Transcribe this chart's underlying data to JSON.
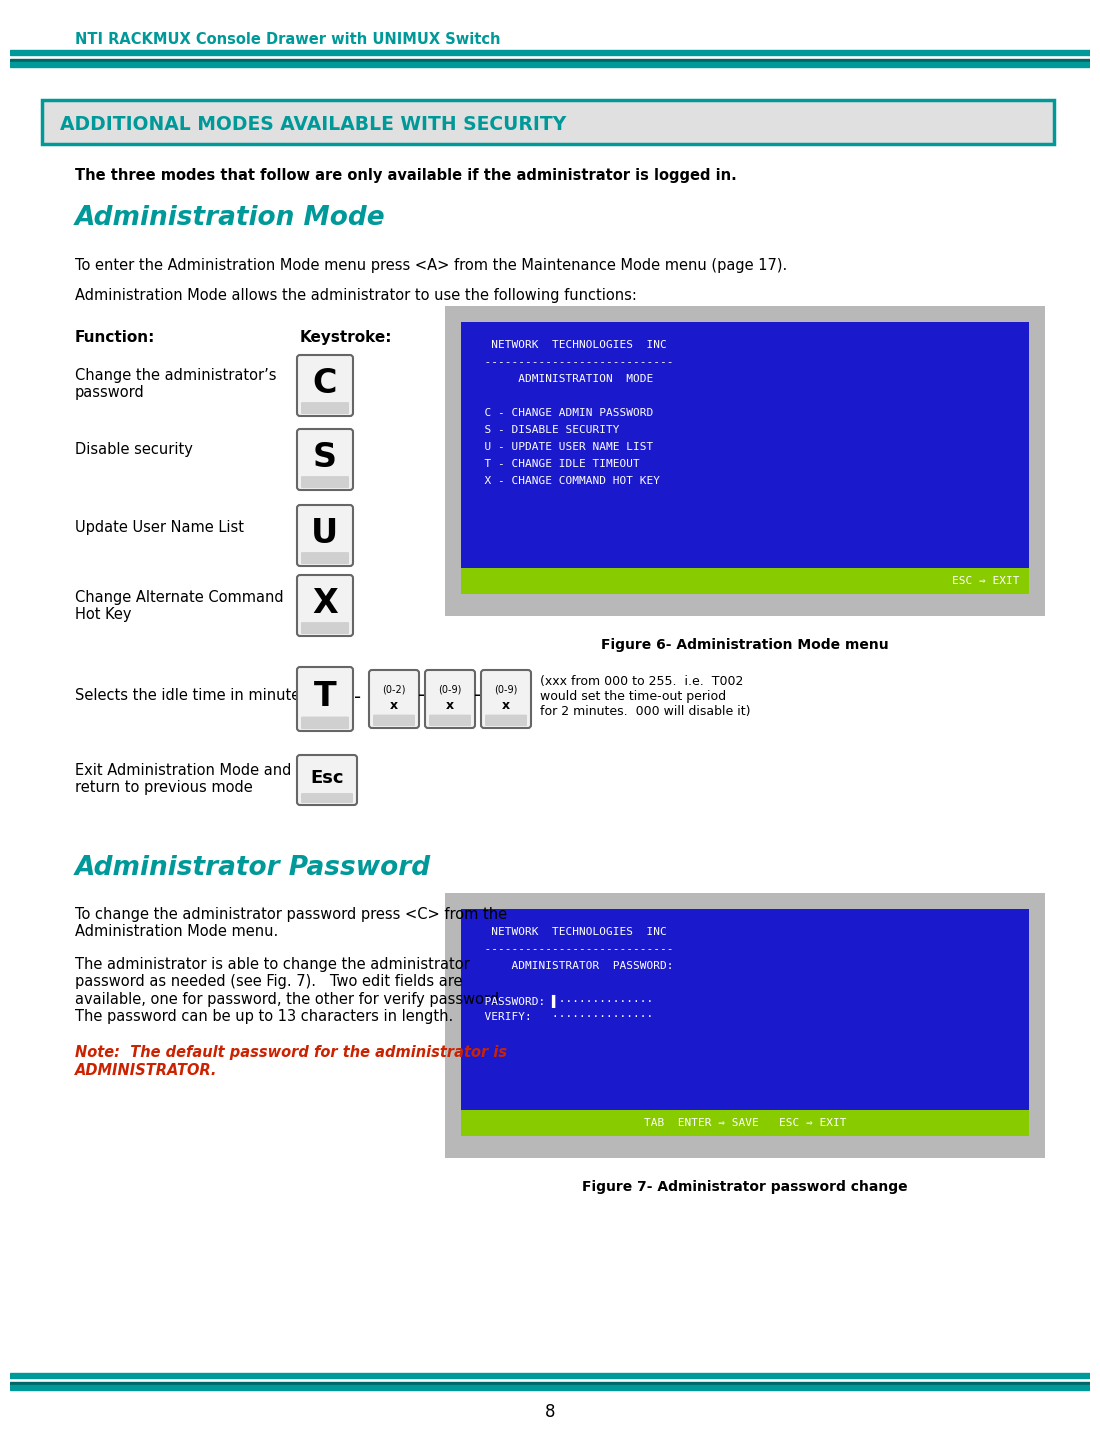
{
  "teal_color": "#009999",
  "header_text": "NTI RACKMUX Console Drawer with UNIMUX Switch",
  "section_title": "ADDITIONAL MODES AVAILABLE WITH SECURITY",
  "bold_intro": "The three modes that follow are only available if the administrator is logged in.",
  "section_heading": "Administration Mode",
  "para1": "To enter the Administration Mode menu press <A> from the Maintenance Mode menu (page 17).",
  "para2": "Administration Mode allows the administrator to use the following functions:",
  "func_header_left": "Function:",
  "func_header_right": "Keystroke:",
  "screen1_lines": [
    "   NETWORK  TECHNOLOGIES  INC",
    "  ----------------------------",
    "       ADMINISTRATION  MODE",
    "",
    "  C - CHANGE ADMIN PASSWORD",
    "  S - DISABLE SECURITY",
    "  U - UPDATE USER NAME LIST",
    "  T - CHANGE IDLE TIMEOUT",
    "  X - CHANGE COMMAND HOT KEY"
  ],
  "screen1_bottom": "ESC ⇒ EXIT",
  "fig6_caption": "Figure 6- Administration Mode menu",
  "idle_text_left": "Selects the idle time in minutes",
  "idle_note": "(xxx from 000 to 255.  i.e.  T002\nwould set the time-out period\nfor 2 minutes.  000 will disable it)",
  "exit_text": "Exit Administration Mode and\nreturn to previous mode",
  "exit_key": "Esc",
  "section_heading2": "Administrator Password",
  "admin_para1": "To change the administrator password press <C> from the\nAdministration Mode menu.",
  "admin_para2": "The administrator is able to change the administrator\npassword as needed (see Fig. 7).   Two edit fields are\navailable, one for password, the other for verify password.\nThe password can be up to 13 characters in length.",
  "admin_note_line1": "Note:  The default password for the administrator is",
  "admin_note_line2": "ADMINISTRATOR.",
  "screen2_lines": [
    "   NETWORK  TECHNOLOGIES  INC",
    "  ----------------------------",
    "      ADMINISTRATOR  PASSWORD:",
    "",
    "  PASSWORD: ▌··············",
    "  VERIFY:   ···············"
  ],
  "screen2_bottom": "TAB  ENTER ⇒ SAVE   ESC ⇒ EXIT",
  "fig7_caption": "Figure 7- Administrator password change",
  "page_num": "8"
}
